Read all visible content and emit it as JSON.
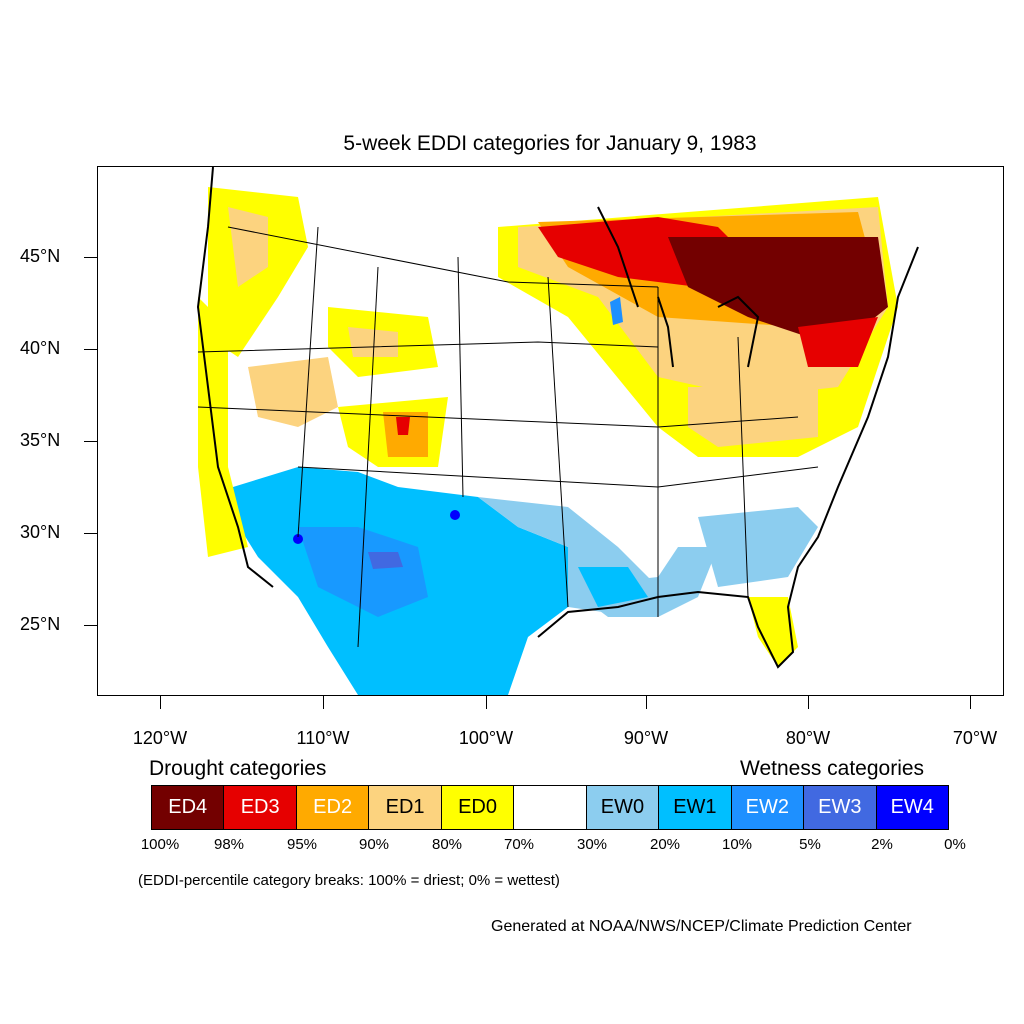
{
  "title": "5-week EDDI categories for January 9, 1983",
  "lat_labels": [
    "45°N",
    "40°N",
    "35°N",
    "30°N",
    "25°N"
  ],
  "lon_labels": [
    "120°W",
    "110°W",
    "100°W",
    "90°W",
    "80°W",
    "70°W"
  ],
  "legend": {
    "drought_heading": "Drought categories",
    "wetness_heading": "Wetness categories",
    "categories": [
      {
        "label": "ED4",
        "color": "#730000",
        "text_color": "#ffffff"
      },
      {
        "label": "ED3",
        "color": "#e60000",
        "text_color": "#ffffff"
      },
      {
        "label": "ED2",
        "color": "#ffaa00",
        "text_color": "#ffffff"
      },
      {
        "label": "ED1",
        "color": "#fcd37f",
        "text_color": "#000000"
      },
      {
        "label": "ED0",
        "color": "#ffff00",
        "text_color": "#000000"
      },
      {
        "label": "",
        "color": "#ffffff",
        "text_color": "#000000"
      },
      {
        "label": "EW0",
        "color": "#8ccdef",
        "text_color": "#000000"
      },
      {
        "label": "EW1",
        "color": "#00bfff",
        "text_color": "#000000"
      },
      {
        "label": "EW2",
        "color": "#1e90ff",
        "text_color": "#ffffff"
      },
      {
        "label": "EW3",
        "color": "#4169e1",
        "text_color": "#ffffff"
      },
      {
        "label": "EW4",
        "color": "#0000ff",
        "text_color": "#ffffff"
      }
    ],
    "breaks": [
      "100%",
      "98%",
      "95%",
      "90%",
      "80%",
      "70%",
      "30%",
      "20%",
      "10%",
      "5%",
      "2%",
      "0%"
    ]
  },
  "note": "(EDDI-percentile category breaks: 100% = driest; 0% = wettest)",
  "credit": "Generated at NOAA/NWS/NCEP/Climate Prediction Center"
}
